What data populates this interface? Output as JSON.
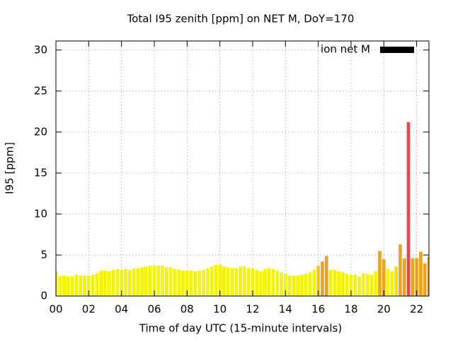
{
  "chart_data": {
    "type": "bar",
    "title": "Total I95 zenith [ppm] on NET M, DoY=170",
    "x_label": "Time of day UTC (15-minute intervals)",
    "y_label": "I95 [ppm]",
    "legend": {
      "label": "ion net M",
      "color": "#000000",
      "position": "top-right"
    },
    "x": [
      0,
      0.25,
      0.5,
      0.75,
      1,
      1.25,
      1.5,
      1.75,
      2,
      2.25,
      2.5,
      2.75,
      3,
      3.25,
      3.5,
      3.75,
      4,
      4.25,
      4.5,
      4.75,
      5,
      5.25,
      5.5,
      5.75,
      6,
      6.25,
      6.5,
      6.75,
      7,
      7.25,
      7.5,
      7.75,
      8,
      8.25,
      8.5,
      8.75,
      9,
      9.25,
      9.5,
      9.75,
      10,
      10.25,
      10.5,
      10.75,
      11,
      11.25,
      11.5,
      11.75,
      12,
      12.25,
      12.5,
      12.75,
      13,
      13.25,
      13.5,
      13.75,
      14,
      14.25,
      14.5,
      14.75,
      15,
      15.25,
      15.5,
      15.75,
      16,
      16.25,
      16.5,
      16.75,
      17,
      17.25,
      17.5,
      17.75,
      18,
      18.25,
      18.5,
      18.75,
      19,
      19.25,
      19.5,
      19.75,
      20,
      20.25,
      20.5,
      20.75,
      21,
      21.25,
      21.5,
      21.75,
      22,
      22.25,
      22.5,
      22.75
    ],
    "values": [
      3.0,
      2.4,
      2.5,
      2.4,
      2.4,
      2.6,
      2.5,
      2.5,
      2.5,
      2.6,
      2.8,
      3.1,
      3.1,
      3.0,
      3.2,
      3.3,
      3.2,
      3.3,
      3.2,
      3.4,
      3.4,
      3.5,
      3.6,
      3.7,
      3.7,
      3.7,
      3.7,
      3.5,
      3.5,
      3.3,
      3.2,
      3.1,
      3.1,
      3.1,
      3.0,
      3.1,
      3.2,
      3.4,
      3.6,
      3.8,
      3.8,
      3.6,
      3.5,
      3.4,
      3.4,
      3.6,
      3.6,
      3.4,
      3.4,
      3.2,
      3.0,
      3.3,
      3.4,
      3.3,
      3.1,
      2.9,
      2.7,
      2.5,
      2.5,
      2.5,
      2.6,
      2.7,
      2.9,
      3.2,
      3.7,
      4.2,
      4.9,
      3.2,
      3.2,
      3.0,
      2.9,
      2.7,
      2.6,
      2.6,
      2.4,
      2.8,
      2.7,
      2.6,
      3.0,
      5.5,
      4.5,
      3.3,
      3.0,
      3.6,
      6.3,
      4.6,
      21.2,
      4.6,
      4.6,
      5.4,
      4.0,
      4.8
    ],
    "colors": [
      "#f4f400",
      "#f4f400",
      "#f4f400",
      "#f4f400",
      "#f4f400",
      "#f4f400",
      "#f4f400",
      "#f4f400",
      "#f4f400",
      "#f4f400",
      "#f4f400",
      "#f4f400",
      "#f4f400",
      "#f4f400",
      "#f4f400",
      "#f4f400",
      "#f4f400",
      "#f4f400",
      "#f4f400",
      "#f4f400",
      "#f4f400",
      "#f4f400",
      "#f4f400",
      "#f4f400",
      "#f4f400",
      "#f4f400",
      "#f4f400",
      "#f4f400",
      "#f4f400",
      "#f4f400",
      "#f4f400",
      "#f4f400",
      "#f4f400",
      "#f4f400",
      "#f4f400",
      "#f4f400",
      "#f4f400",
      "#f4f400",
      "#f4f400",
      "#f4f400",
      "#f4f400",
      "#f4f400",
      "#f4f400",
      "#f4f400",
      "#f4f400",
      "#f4f400",
      "#f4f400",
      "#f4f400",
      "#f4f400",
      "#f4f400",
      "#f4f400",
      "#f4f400",
      "#f4f400",
      "#f4f400",
      "#f4f400",
      "#f4f400",
      "#f4f400",
      "#f4f400",
      "#f4f400",
      "#f4f400",
      "#f4f400",
      "#f4f400",
      "#f4f400",
      "#f4f400",
      "#f4c810",
      "#eea020",
      "#eea020",
      "#f4f400",
      "#f4f400",
      "#f4f400",
      "#f4f400",
      "#f4f400",
      "#f4f400",
      "#f4f400",
      "#f4f400",
      "#f4f400",
      "#f4f400",
      "#f4f400",
      "#f4f400",
      "#eea020",
      "#eea020",
      "#f4f400",
      "#f4f400",
      "#f4e000",
      "#eea020",
      "#eea020",
      "#e44848",
      "#eea020",
      "#eea020",
      "#eea020",
      "#eea020",
      "#eea020"
    ],
    "bar_width": 0.2,
    "xlim": [
      0,
      22.75
    ],
    "ylim": [
      0,
      31.1
    ],
    "xticks": [
      {
        "value": 0,
        "label": "00"
      },
      {
        "value": 2,
        "label": "02"
      },
      {
        "value": 4,
        "label": "04"
      },
      {
        "value": 6,
        "label": "06"
      },
      {
        "value": 8,
        "label": "08"
      },
      10,
      12,
      14,
      16,
      18,
      20,
      22
    ],
    "yticks": [
      0,
      5,
      10,
      15,
      20,
      25,
      30
    ],
    "grid": true
  }
}
